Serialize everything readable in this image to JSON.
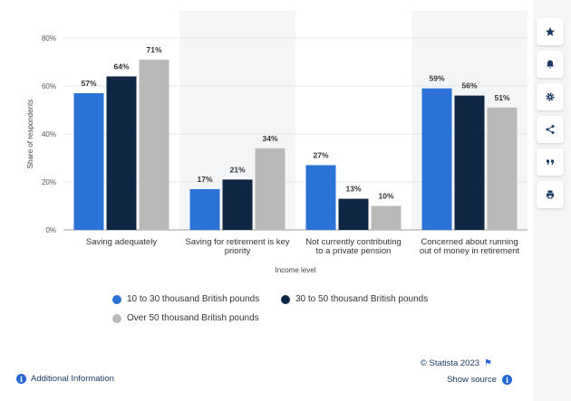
{
  "chart_data": {
    "type": "bar",
    "categories": [
      "Saving adequately",
      "Saving for retirement is key priority",
      "Not currently contributing to a private pension",
      "Concerned about running out of money in retirement"
    ],
    "category_lines": [
      [
        "Saving adequately"
      ],
      [
        "Saving for retirement is key",
        "priority"
      ],
      [
        "Not currently contributing",
        "to a private pension"
      ],
      [
        "Concerned about running",
        "out of money in retirement"
      ]
    ],
    "series": [
      {
        "name": "10 to 30 thousand British pounds",
        "values": [
          57,
          17,
          27,
          59
        ],
        "color": "#2a72d6"
      },
      {
        "name": "30 to 50 thousand British pounds",
        "values": [
          64,
          21,
          13,
          56
        ],
        "color": "#0f2742"
      },
      {
        "name": "Over 50 thousand British pounds",
        "values": [
          71,
          34,
          10,
          51
        ],
        "color": "#b9b9b9"
      }
    ],
    "value_suffix": "%",
    "xlabel": "Income level",
    "ylabel": "Share of respondents",
    "ylim": [
      0,
      80
    ],
    "yticks": [
      0,
      20,
      40,
      60,
      80
    ],
    "ytick_labels": [
      "0%",
      "20%",
      "40%",
      "60%",
      "80%"
    ],
    "grid": true,
    "legend_position": "bottom"
  },
  "footer": {
    "credit": "© Statista 2023",
    "show_source": "Show source",
    "additional_info": "Additional Information"
  },
  "sidebar": {
    "buttons": [
      "star-icon",
      "bell-icon",
      "gear-icon",
      "share-icon",
      "quote-icon",
      "print-icon"
    ]
  },
  "colors": {
    "accent": "#2668d8",
    "band": "#f4f5f7"
  }
}
